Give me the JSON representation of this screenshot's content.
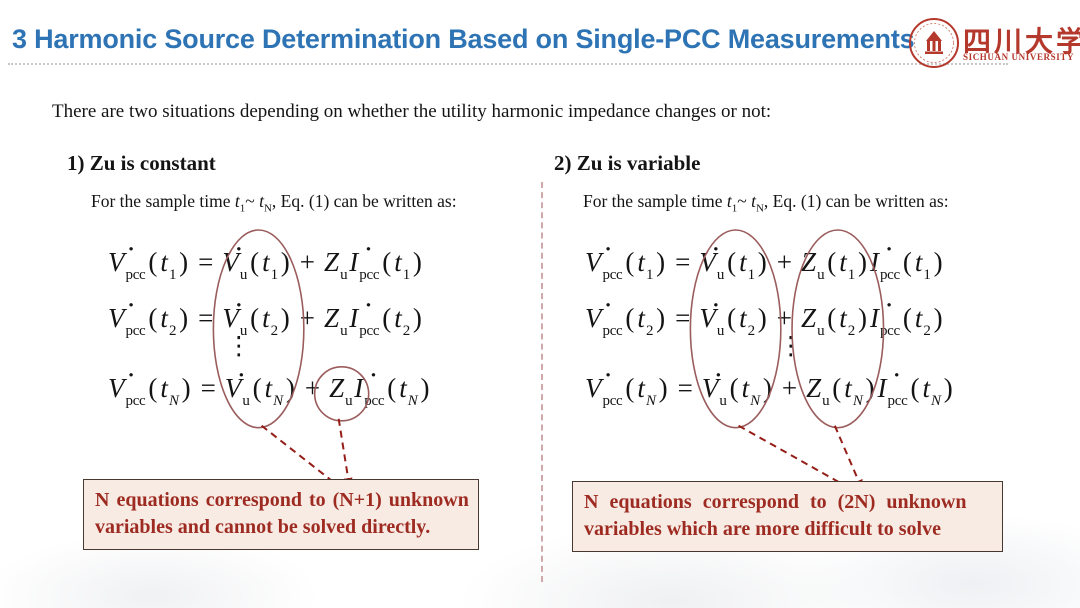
{
  "colors": {
    "title_blue": "#2E74B5",
    "logo_red": "#B5382C",
    "text_black": "#141414",
    "note_red": "#9E2B21",
    "arrow_red": "#951F18",
    "ellipse_red": "#9A5C5C",
    "box_bg": "#F7EBE4",
    "box_border": "#47392F",
    "divider_pink": "#CFA9A9",
    "underline_gray": "#C8C8C8"
  },
  "header": {
    "title": "3 Harmonic Source Determination Based on Single-PCC Measurements",
    "logo_cn": "四川大学",
    "logo_en": "SICHUAN UNIVERSITY"
  },
  "intro": "There are two situations depending on whether the utility harmonic impedance changes or not:",
  "left": {
    "heading": "1) Zu is constant",
    "note_line1": "N equations correspond to (N+1) unknown",
    "note_line2": "variables and cannot be solved directly."
  },
  "right": {
    "heading": "2) Zu is variable",
    "note_line1": "N equations correspond to (2N) unknown",
    "note_line2": "variables which are more difficult to solve"
  },
  "sample_line": {
    "prefix": "For the sample time ",
    "t": "t",
    "sub_start": "1",
    "tilde": "~ ",
    "sub_end": "N",
    "suffix": ", Eq. (1) can be written as:"
  },
  "equations": {
    "indices": [
      "1",
      "2",
      "N"
    ],
    "vdots": "⋮",
    "left_segments": [
      {
        "grp": "",
        "t": "V._pcc ( t_# ) ="
      },
      {
        "grp": "vu",
        "t": "V._u ( t_# )"
      },
      {
        "grp": "plus",
        "t": "+"
      },
      {
        "grp": "zu",
        "t": "Z_u"
      },
      {
        "grp": "",
        "t": "I._pcc ( t_# )"
      }
    ],
    "right_segments": [
      {
        "grp": "",
        "t": "V._pcc ( t_# ) ="
      },
      {
        "grp": "vu",
        "t": "V._u ( t_# )"
      },
      {
        "grp": "plus",
        "t": "+"
      },
      {
        "grp": "zu",
        "t": "Z_u ( t_# )"
      },
      {
        "grp": "",
        "t": "I._pcc ( t_# )"
      }
    ],
    "annotations": {
      "left": [
        {
          "shape": "ellipse",
          "grp": "vu",
          "rows": [
            0,
            2
          ]
        },
        {
          "shape": "circle",
          "grp": "zu",
          "rows": [
            2,
            2
          ]
        }
      ],
      "right": [
        {
          "shape": "ellipse",
          "grp": "vu",
          "rows": [
            0,
            2
          ]
        },
        {
          "shape": "ellipse",
          "grp": "zu",
          "rows": [
            0,
            2
          ]
        }
      ]
    }
  }
}
